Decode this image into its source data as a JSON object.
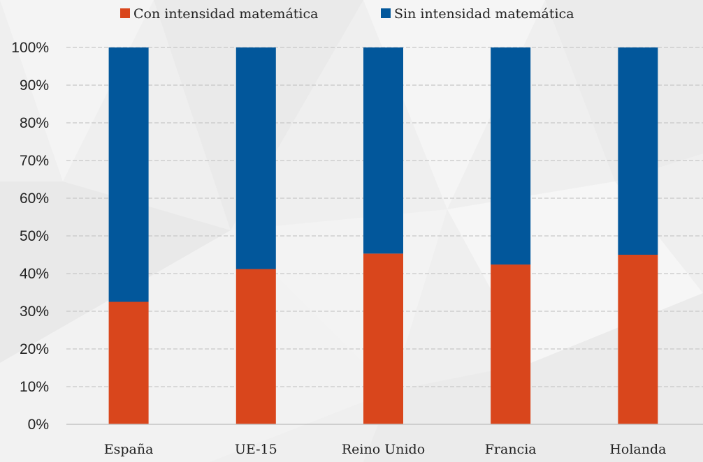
{
  "chart_data": {
    "type": "bar",
    "stacked": true,
    "categories": [
      "España",
      "UE-15",
      "Reino Unido",
      "Francia",
      "Holanda"
    ],
    "series": [
      {
        "name": "Con intensidad matemática",
        "color": "#d9461c",
        "values": [
          32.5,
          41.2,
          45.3,
          42.4,
          45.0
        ]
      },
      {
        "name": "Sin intensidad matemática",
        "color": "#02579b",
        "values": [
          67.5,
          58.8,
          54.7,
          57.6,
          55.0
        ]
      }
    ],
    "title": "",
    "xlabel": "",
    "ylabel": "",
    "ylim": [
      0,
      100
    ],
    "yticks": [
      "0%",
      "10%",
      "20%",
      "30%",
      "40%",
      "50%",
      "60%",
      "70%",
      "80%",
      "90%",
      "100%"
    ],
    "grid": true,
    "legend_position": "top"
  }
}
